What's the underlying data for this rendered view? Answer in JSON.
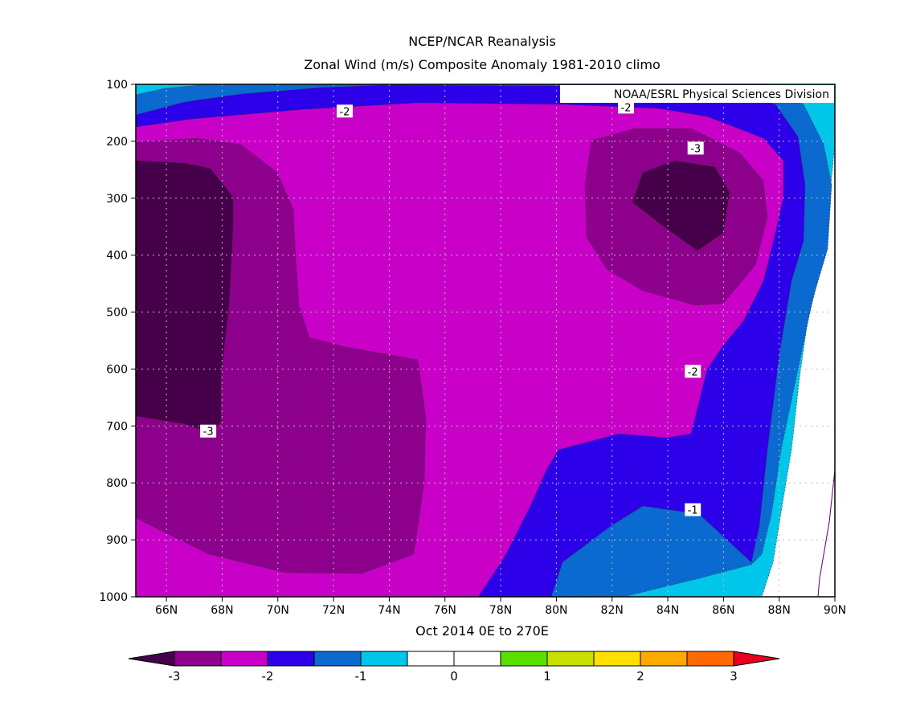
{
  "title": "NCEP/NCAR Reanalysis",
  "subtitle": "Zonal Wind (m/s) Composite Anomaly 1981-2010 climo",
  "credit": "NOAA/ESRL Physical Sciences Division",
  "xlabel": "Oct 2014 0E to 270E",
  "colors": {
    "c1": "#46004a",
    "c2": "#8c008c",
    "c3": "#c800c8",
    "c4": "#2c00e8",
    "c5": "#0a6ad0",
    "c6": "#00c6ea",
    "c7": "#ffffff",
    "c8": "#ffffff",
    "c9": "#5ae000",
    "c10": "#c8e000",
    "c11": "#ffe000",
    "c12": "#ffaa00",
    "c13": "#ff6a00",
    "c14": "#e8001e"
  },
  "chart_data": {
    "type": "heatmap",
    "title": "NCEP/NCAR Reanalysis",
    "subtitle": "Zonal Wind (m/s) Composite Anomaly 1981-2010 climo",
    "xlabel": "Oct 2014 0E to 270E",
    "ylabel": "",
    "x_ticks": [
      "66N",
      "68N",
      "70N",
      "72N",
      "74N",
      "76N",
      "78N",
      "80N",
      "82N",
      "84N",
      "86N",
      "88N",
      "90N"
    ],
    "x_tick_values": [
      66,
      68,
      70,
      72,
      74,
      76,
      78,
      80,
      82,
      84,
      86,
      88,
      90
    ],
    "y_ticks": [
      "100",
      "200",
      "300",
      "400",
      "500",
      "600",
      "700",
      "800",
      "900",
      "1000"
    ],
    "y_tick_values": [
      100,
      200,
      300,
      400,
      500,
      600,
      700,
      800,
      900,
      1000
    ],
    "xlim": [
      64.9,
      90
    ],
    "ylim": [
      1000,
      100
    ],
    "grid": true,
    "contour_labels": [
      {
        "text": "-2",
        "x": 72.4,
        "y": 147
      },
      {
        "text": "-2",
        "x": 82.5,
        "y": 140
      },
      {
        "text": "-3",
        "x": 85.0,
        "y": 212
      },
      {
        "text": "-2",
        "x": 84.9,
        "y": 604
      },
      {
        "text": "-3",
        "x": 67.5,
        "y": 709
      },
      {
        "text": "-1",
        "x": 84.9,
        "y": 847
      }
    ],
    "colorbar": {
      "levels": [
        "-3",
        "-2",
        "-1",
        "0",
        "1",
        "2",
        "3"
      ],
      "level_values": [
        -3,
        -2,
        -1,
        0,
        1,
        2,
        3
      ],
      "bins": [
        "c1",
        "c2",
        "c3",
        "c4",
        "c5",
        "c6",
        "c7",
        "c8",
        "c9",
        "c10",
        "c11",
        "c12",
        "c13",
        "c14"
      ]
    }
  }
}
